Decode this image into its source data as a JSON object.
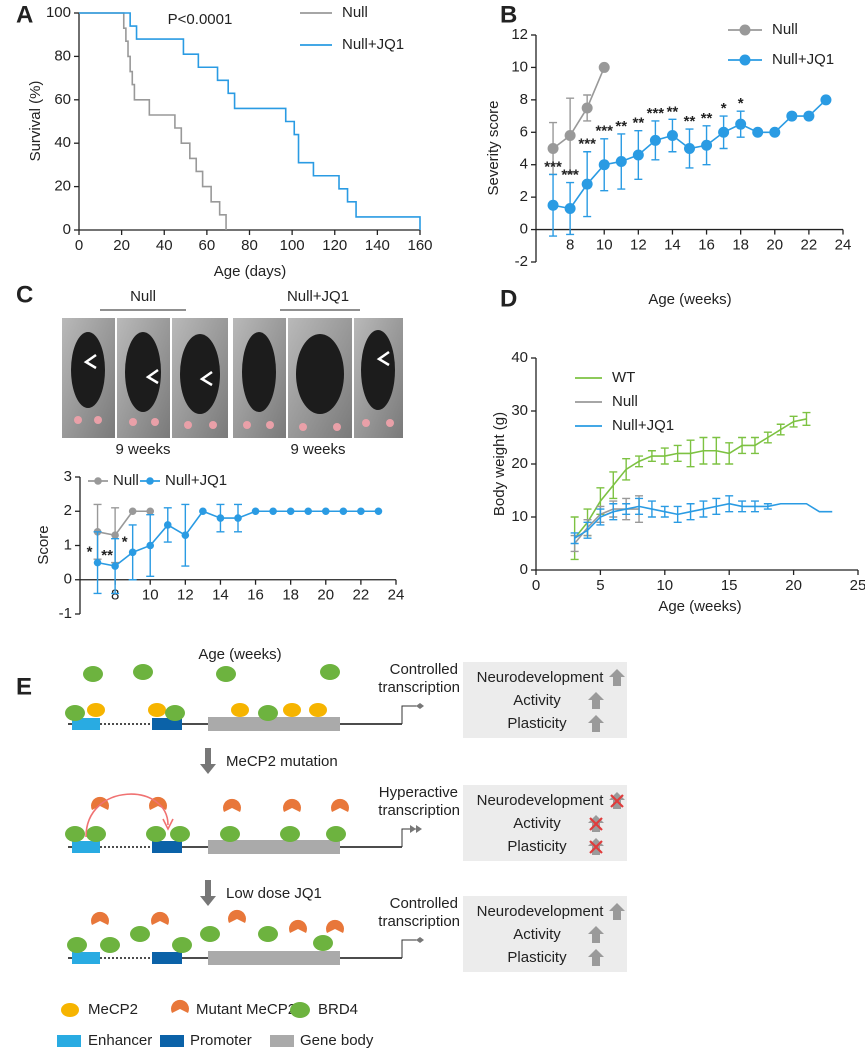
{
  "chart_data": [
    {
      "panel": "A",
      "type": "line",
      "step": true,
      "markers": false,
      "x_label": "Age (days)",
      "y_label": "Survival (%)",
      "annotation": "P<0.0001",
      "xlim": [
        0,
        160
      ],
      "xticks": [
        0,
        20,
        40,
        60,
        80,
        100,
        120,
        140,
        160
      ],
      "ylim": [
        0,
        100
      ],
      "yticks": [
        0,
        20,
        40,
        60,
        80,
        100
      ],
      "series": [
        {
          "name": "Null",
          "color": "#999999",
          "x": [
            0,
            20,
            21,
            22,
            23,
            24,
            25,
            26,
            33,
            45,
            48,
            52,
            55,
            58,
            62,
            66,
            69
          ],
          "values": [
            100,
            100,
            93,
            87,
            80,
            73,
            67,
            60,
            53,
            47,
            40,
            33,
            27,
            20,
            13,
            7,
            0
          ]
        },
        {
          "name": "Null+JQ1",
          "color": "#2a9be3",
          "x": [
            0,
            24,
            27,
            49,
            56,
            65,
            70,
            73,
            97,
            101,
            103,
            110,
            122,
            126,
            130,
            160
          ],
          "values": [
            100,
            94,
            88,
            81,
            75,
            69,
            63,
            56,
            50,
            44,
            31,
            25,
            19,
            13,
            6,
            0
          ]
        }
      ]
    },
    {
      "panel": "B",
      "type": "line",
      "step": false,
      "markers": true,
      "x_label": "Age (weeks)",
      "y_label": "Severity score",
      "xlim": [
        6,
        24
      ],
      "xticks": [
        8,
        10,
        12,
        14,
        16,
        18,
        20,
        22,
        24
      ],
      "ylim": [
        -2,
        12
      ],
      "yticks": [
        -2,
        0,
        2,
        4,
        6,
        8,
        10,
        12
      ],
      "series": [
        {
          "name": "Null",
          "color": "#999999",
          "x": [
            7,
            8,
            9,
            10
          ],
          "values": [
            5,
            5.8,
            7.5,
            10
          ],
          "errors": [
            1.6,
            2.3,
            0.8,
            null
          ]
        },
        {
          "name": "Null+JQ1",
          "color": "#2a9be3",
          "x": [
            7,
            8,
            9,
            10,
            11,
            12,
            13,
            14,
            15,
            16,
            17,
            18,
            19,
            20,
            21,
            22,
            23
          ],
          "values": [
            1.5,
            1.3,
            2.8,
            4,
            4.2,
            4.6,
            5.5,
            5.8,
            5,
            5.2,
            6,
            6.5,
            6,
            6,
            7,
            7,
            8
          ],
          "errors": [
            1.9,
            1.6,
            2,
            1.6,
            1.7,
            1.5,
            1.2,
            1,
            1.2,
            1.2,
            1,
            0.8,
            null,
            null,
            null,
            null,
            null
          ],
          "significance": [
            "***",
            "***",
            "***",
            "***",
            "**",
            "**",
            "***",
            "**",
            "**",
            "**",
            "*",
            "*",
            null,
            null,
            null,
            null,
            null
          ]
        }
      ]
    },
    {
      "panel": "C",
      "type": "line",
      "step": false,
      "markers": true,
      "photo_groups": [
        {
          "label": "Null",
          "caption": "9 weeks"
        },
        {
          "label": "Null+JQ1",
          "caption": "9 weeks"
        }
      ],
      "x_label": "Age (weeks)",
      "y_label": "Score",
      "xlim": [
        6,
        24
      ],
      "xticks": [
        8,
        10,
        12,
        14,
        16,
        18,
        20,
        22,
        24
      ],
      "ylim": [
        -1,
        3
      ],
      "yticks": [
        -1,
        0,
        1,
        2,
        3
      ],
      "series": [
        {
          "name": "Null",
          "color": "#999999",
          "x": [
            7,
            8,
            9,
            10
          ],
          "values": [
            1.4,
            1.3,
            2,
            2
          ],
          "errors": [
            0.8,
            0.8,
            null,
            null
          ]
        },
        {
          "name": "Null+JQ1",
          "color": "#2a9be3",
          "x": [
            7,
            8,
            9,
            10,
            11,
            12,
            13,
            14,
            15,
            16,
            17,
            18,
            19,
            20,
            21,
            22,
            23
          ],
          "values": [
            0.5,
            0.4,
            0.8,
            1,
            1.6,
            1.3,
            2,
            1.8,
            1.8,
            2,
            2,
            2,
            2,
            2,
            2,
            2,
            2
          ],
          "errors": [
            0.9,
            0.8,
            0.8,
            0.9,
            0.5,
            0.9,
            null,
            0.4,
            0.4,
            null,
            null,
            null,
            null,
            null,
            null,
            null,
            null
          ],
          "significance": [
            "*",
            "**",
            "*",
            null,
            null,
            null,
            null,
            null,
            null,
            null,
            null,
            null,
            null,
            null,
            null,
            null,
            null
          ]
        }
      ]
    },
    {
      "panel": "D",
      "type": "line",
      "step": false,
      "markers": false,
      "x_label": "Age (weeks)",
      "y_label": "Body weight (g)",
      "xlim": [
        0,
        25
      ],
      "xticks": [
        0,
        5,
        10,
        15,
        20,
        25
      ],
      "ylim": [
        0,
        40
      ],
      "yticks": [
        0,
        10,
        20,
        30,
        40
      ],
      "series": [
        {
          "name": "WT",
          "color": "#7dc242",
          "x": [
            3,
            4,
            5,
            6,
            7,
            8,
            9,
            10,
            11,
            12,
            13,
            14,
            15,
            16,
            17,
            18,
            19,
            20,
            21
          ],
          "values": [
            6,
            9,
            13,
            16,
            19,
            20.5,
            21.5,
            21.5,
            22,
            22,
            22.5,
            22.5,
            22,
            23.5,
            23.5,
            25,
            26.5,
            28,
            28.5
          ],
          "errors": [
            4,
            2.5,
            2.5,
            2.5,
            2,
            1,
            1,
            1.5,
            1.5,
            2.5,
            2.5,
            2.5,
            2,
            1.5,
            1.5,
            1,
            1,
            1,
            1.2
          ]
        },
        {
          "name": "Null",
          "color": "#999999",
          "x": [
            3,
            4,
            5,
            6,
            7,
            8
          ],
          "values": [
            5,
            8,
            10.5,
            11.5,
            11.5,
            11.5
          ],
          "errors": [
            1.5,
            1.5,
            1.5,
            1.5,
            2,
            2.5
          ]
        },
        {
          "name": "Null+JQ1",
          "color": "#2a9be3",
          "x": [
            3,
            4,
            5,
            6,
            7,
            8,
            9,
            10,
            11,
            12,
            13,
            14,
            15,
            16,
            17,
            18,
            19,
            20,
            21,
            22,
            23
          ],
          "values": [
            6,
            7.5,
            10,
            11,
            11.5,
            12,
            11.5,
            11,
            10.5,
            11,
            11.5,
            12,
            12.5,
            12,
            12,
            12,
            12.5,
            12.5,
            12.5,
            11,
            11
          ],
          "errors": [
            1,
            1.5,
            1.5,
            1.5,
            1,
            1.5,
            1.5,
            1,
            1.5,
            1.5,
            1.5,
            1.5,
            1.5,
            1,
            1,
            0.5,
            null,
            null,
            null,
            null,
            null
          ]
        }
      ]
    }
  ],
  "diagram": {
    "panel": "E",
    "rows": [
      {
        "transcription": [
          "Controlled",
          "transcription"
        ],
        "outcomes": [
          "Neurodevelopment",
          "Activity",
          "Plasticity"
        ]
      },
      {
        "transcription": [
          "Hyperactive",
          "transcription"
        ],
        "outcomes": [
          "Neurodevelopment",
          "Activity",
          "Plasticity"
        ]
      },
      {
        "transcription": [
          "Controlled",
          "transcription"
        ],
        "outcomes": [
          "Neurodevelopment",
          "Activity",
          "Plasticity"
        ]
      }
    ],
    "steps": [
      "MeCP2 mutation",
      "Low dose JQ1"
    ],
    "legend": [
      "MeCP2",
      "Mutant MeCP2",
      "BRD4",
      "Enhancer",
      "Promoter",
      "Gene body"
    ]
  }
}
